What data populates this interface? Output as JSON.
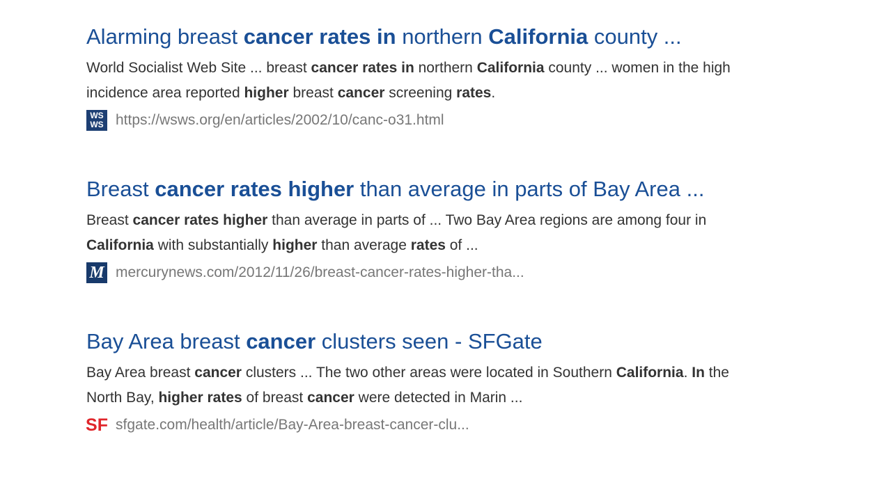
{
  "results": [
    {
      "title": [
        {
          "text": "Alarming breast ",
          "bold": false
        },
        {
          "text": "cancer rates in",
          "bold": true
        },
        {
          "text": " northern ",
          "bold": false
        },
        {
          "text": "California",
          "bold": true
        },
        {
          "text": " county ...",
          "bold": false
        }
      ],
      "snippet": [
        [
          {
            "text": "World Socialist Web Site ... breast ",
            "bold": false
          },
          {
            "text": "cancer rates in",
            "bold": true
          },
          {
            "text": " northern ",
            "bold": false
          },
          {
            "text": "California",
            "bold": true
          },
          {
            "text": " county ... women in the high",
            "bold": false
          }
        ],
        [
          {
            "text": "incidence area reported ",
            "bold": false
          },
          {
            "text": "higher",
            "bold": true
          },
          {
            "text": " breast ",
            "bold": false
          },
          {
            "text": "cancer",
            "bold": true
          },
          {
            "text": " screening ",
            "bold": false
          },
          {
            "text": "rates",
            "bold": true
          },
          {
            "text": ".",
            "bold": false
          }
        ]
      ],
      "icon": {
        "lines": [
          "WS",
          "WS"
        ],
        "style": "wsws"
      },
      "url": "https://wsws.org/en/articles/2002/10/canc-o31.html"
    },
    {
      "title": [
        {
          "text": "Breast ",
          "bold": false
        },
        {
          "text": "cancer rates higher",
          "bold": true
        },
        {
          "text": " than average in parts of Bay Area ...",
          "bold": false
        }
      ],
      "snippet": [
        [
          {
            "text": "Breast ",
            "bold": false
          },
          {
            "text": "cancer rates higher",
            "bold": true
          },
          {
            "text": " than average in parts of ... Two Bay Area regions are among four in",
            "bold": false
          }
        ],
        [
          {
            "text": "California",
            "bold": true
          },
          {
            "text": " with substantially ",
            "bold": false
          },
          {
            "text": "higher",
            "bold": true
          },
          {
            "text": " than average ",
            "bold": false
          },
          {
            "text": "rates",
            "bold": true
          },
          {
            "text": " of ...",
            "bold": false
          }
        ]
      ],
      "icon": {
        "lines": [
          "M"
        ],
        "style": "mercury"
      },
      "url": "mercurynews.com/2012/11/26/breast-cancer-rates-higher-tha..."
    },
    {
      "title": [
        {
          "text": "Bay Area breast ",
          "bold": false
        },
        {
          "text": "cancer",
          "bold": true
        },
        {
          "text": " clusters seen - SFGate",
          "bold": false
        }
      ],
      "snippet": [
        [
          {
            "text": "Bay Area breast ",
            "bold": false
          },
          {
            "text": "cancer",
            "bold": true
          },
          {
            "text": " clusters ... The two other areas were located in Southern ",
            "bold": false
          },
          {
            "text": "California",
            "bold": true
          },
          {
            "text": ". ",
            "bold": false
          },
          {
            "text": "In",
            "bold": true
          },
          {
            "text": " the",
            "bold": false
          }
        ],
        [
          {
            "text": "North Bay, ",
            "bold": false
          },
          {
            "text": "higher rates",
            "bold": true
          },
          {
            "text": " of breast ",
            "bold": false
          },
          {
            "text": "cancer",
            "bold": true
          },
          {
            "text": " were detected in Marin ...",
            "bold": false
          }
        ]
      ],
      "icon": {
        "lines": [
          "SF"
        ],
        "style": "sf"
      },
      "url": "sfgate.com/health/article/Bay-Area-breast-cancer-clu..."
    }
  ]
}
